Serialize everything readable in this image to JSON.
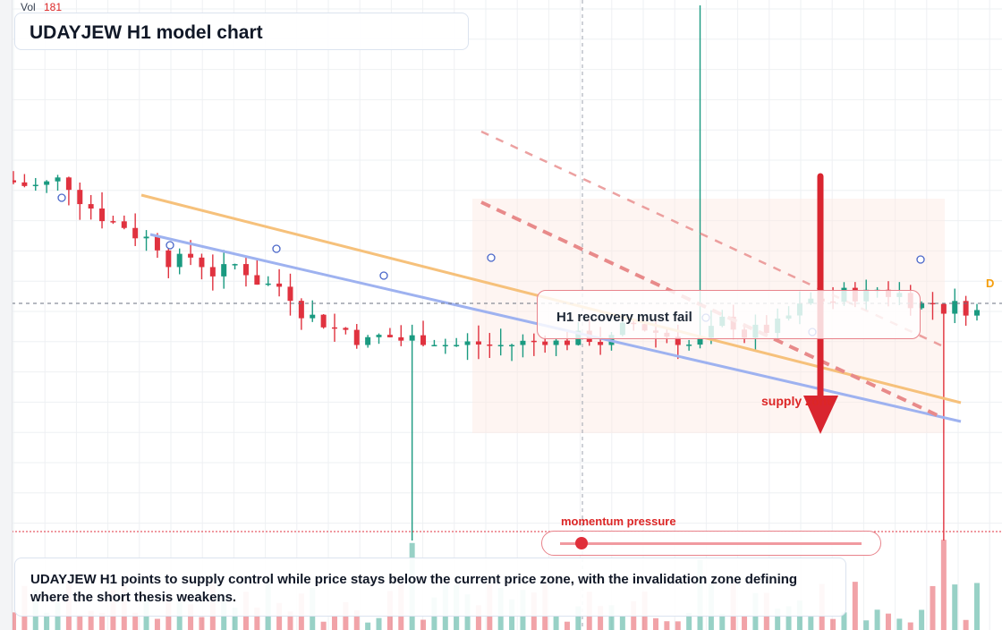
{
  "title": "UDAYJEW H1 model chart",
  "volume": {
    "label": "Vol",
    "value": "181"
  },
  "callout": "H1 recovery must fail",
  "zone_label": "supply zone",
  "momentum": {
    "label": "momentum pressure",
    "level": 0.07
  },
  "summary": "UDAYJEW H1 points to supply control while price stays below the current price zone, with the invalidation zone defining where the short thesis weakens.",
  "marker": "D",
  "colors": {
    "bull": "#1a9a80",
    "bear": "#e0323f",
    "trend_upper": "#f6c17b",
    "trend_lower": "#9eb2f0",
    "dash": "#e88a8a"
  },
  "chart_data": {
    "type": "candlestick",
    "bars": 88,
    "price_range": [
      0,
      100
    ],
    "spikes": [
      {
        "bar": 36,
        "direction": "down",
        "extends_to": "volume pane"
      },
      {
        "bar": 62,
        "direction": "up"
      },
      {
        "bar": 84,
        "direction": "down"
      }
    ],
    "trendlines": [
      "upper falling",
      "lower falling"
    ],
    "projection": "down arrow"
  }
}
